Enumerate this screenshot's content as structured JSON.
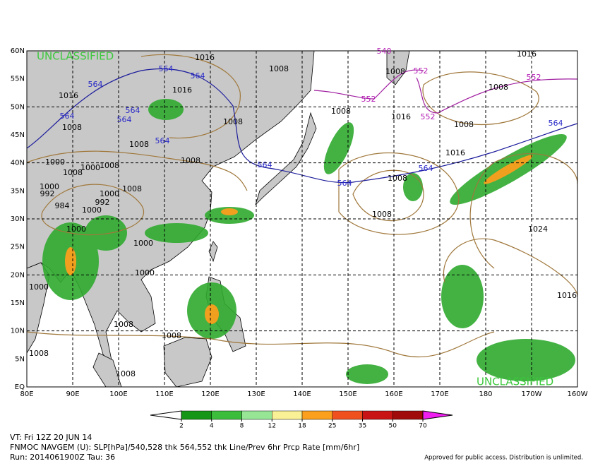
{
  "map": {
    "watermark": "UNCLASSIFIED",
    "lat_labels": [
      "60N",
      "55N",
      "50N",
      "45N",
      "40N",
      "35N",
      "30N",
      "25N",
      "20N",
      "15N",
      "10N",
      "5N",
      "EQ"
    ],
    "lon_labels": [
      "80E",
      "90E",
      "100E",
      "110E",
      "120E",
      "130E",
      "140E",
      "150E",
      "160E",
      "170E",
      "180",
      "170W",
      "160W"
    ],
    "contour_labels": [
      "1016",
      "1008",
      "564",
      "564",
      "564",
      "1016",
      "1016",
      "564",
      "564",
      "564",
      "1008",
      "1008",
      "1008",
      "564",
      "1008",
      "1000",
      "1008",
      "1008",
      "1000",
      "992",
      "1000",
      "1000",
      "1008",
      "992",
      "984",
      "1000",
      "1000",
      "1000",
      "1000",
      "1000",
      "1008",
      "1008",
      "1008",
      "1008",
      "564",
      "564",
      "564",
      "564",
      "1008",
      "1008",
      "1024",
      "1016",
      "1016",
      "1008",
      "1016",
      "1008",
      "552",
      "552",
      "552",
      "552",
      "1008",
      "1016",
      "1008",
      "540"
    ]
  },
  "colorbar": {
    "ticks": [
      2,
      4,
      8,
      12,
      18,
      25,
      35,
      50,
      70
    ],
    "colors": [
      "#169616",
      "#3cbe3c",
      "#96e696",
      "#faf096",
      "#faa01e",
      "#f0501e",
      "#c81414",
      "#a00a0a"
    ],
    "over_color": "#f01ef0"
  },
  "footer": {
    "line1": "VT: Fri 12Z 20 JUN 14",
    "line2": "FNMOC NAVGEM (U): SLP[hPa]/540,528 thk 564,552 thk Line/Prev 6hr Prcp Rate [mm/6hr]",
    "line3": "Run: 2014061900Z Tau: 36",
    "notice": "Approved for public access. Distribution is unlimited."
  }
}
